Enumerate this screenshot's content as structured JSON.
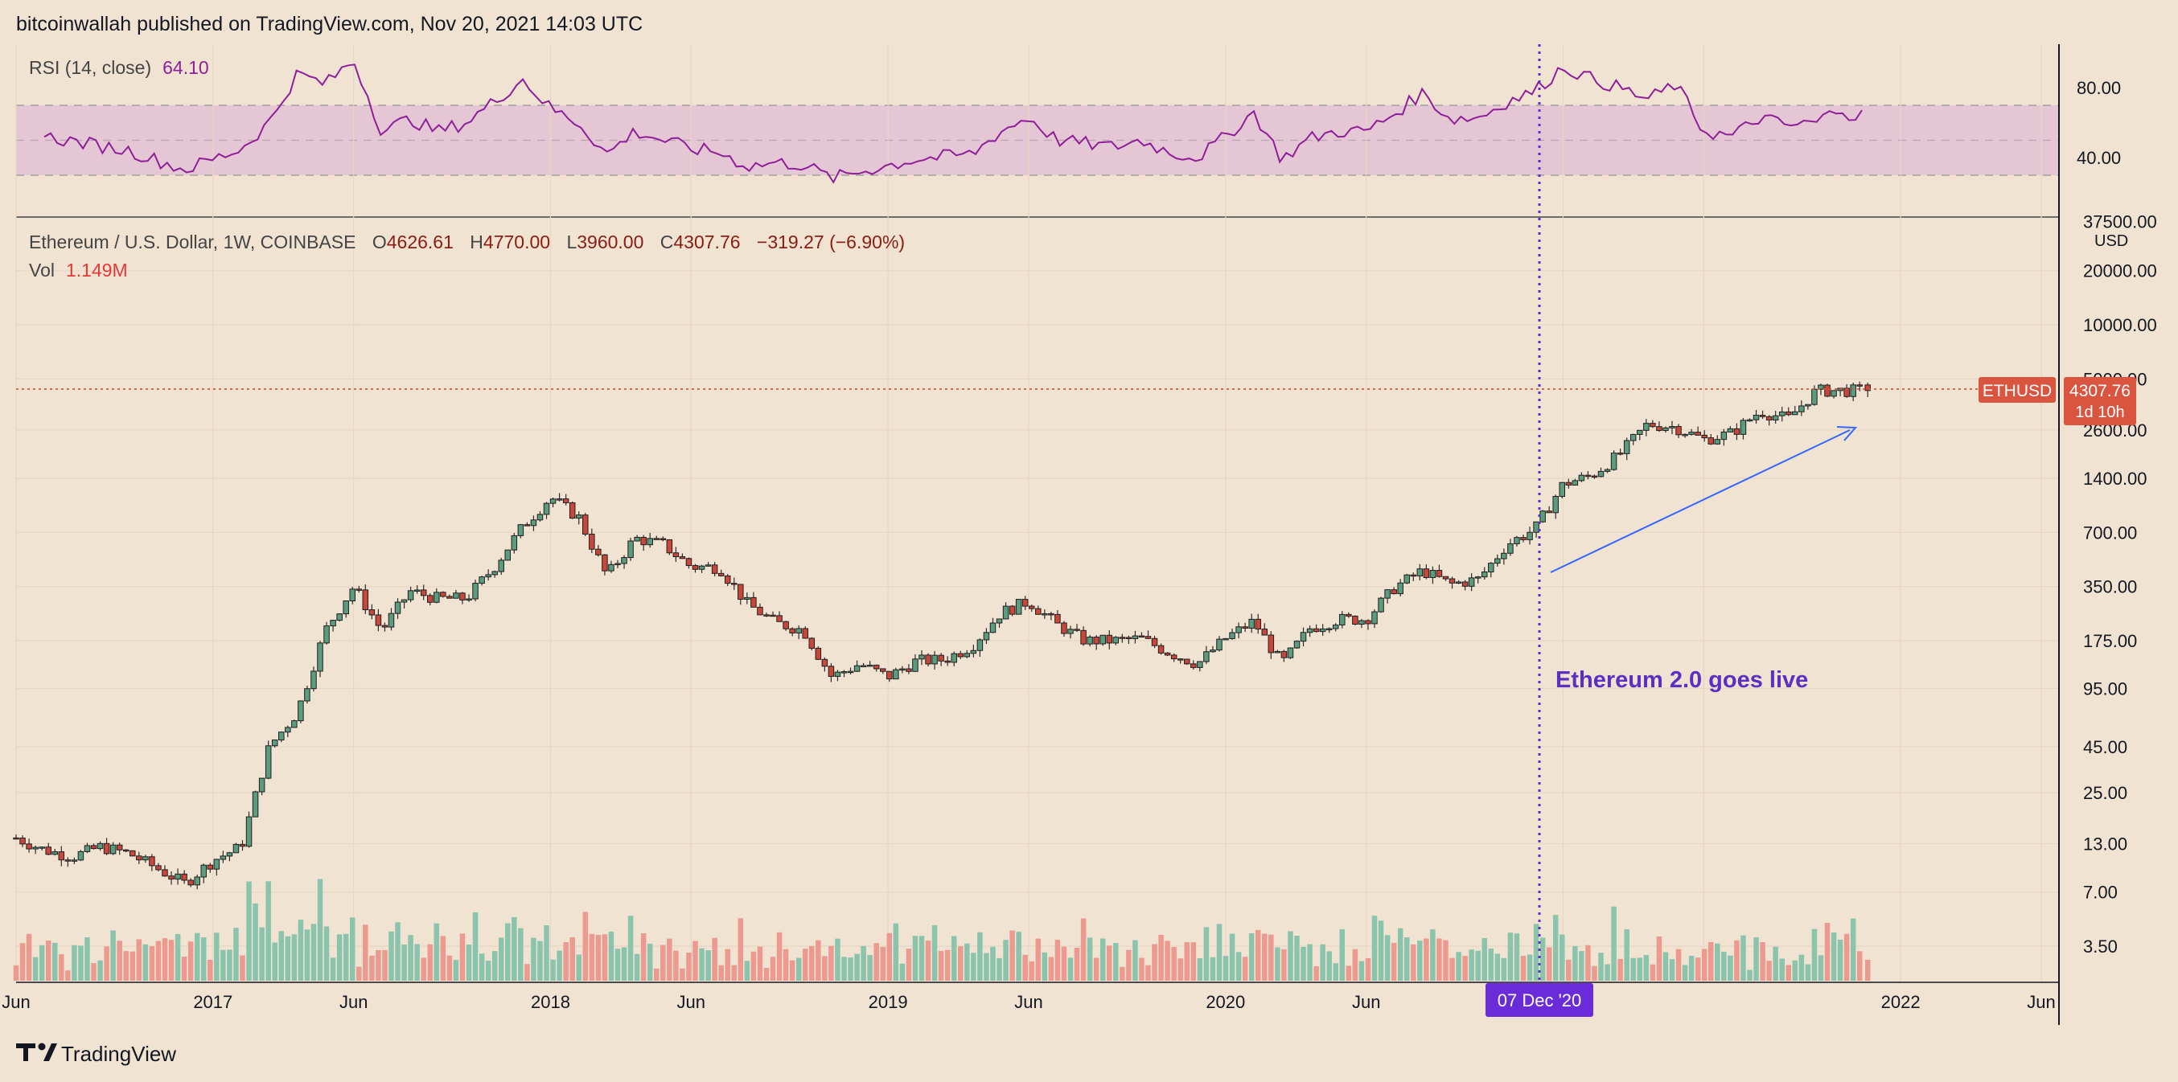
{
  "header": {
    "published_line": "bitcoinwallah published on TradingView.com, Nov 20, 2021 14:03 UTC"
  },
  "footer": {
    "brand": "TradingView"
  },
  "colors": {
    "background": "#f1e3d2",
    "up": "#5b9b7e",
    "down": "#c9473a",
    "vol_up": "#8bc4ad",
    "vol_down": "#ec9a90",
    "rsi_line": "#8e1f99",
    "rsi_band": "#e5c6d4",
    "event_line": "#5b2ec4",
    "arrow": "#3366ff",
    "price_line": "#d9553f",
    "price_tag": "#d9553f"
  },
  "rsi": {
    "legend_label": "RSI (14, close)",
    "legend_value": "64.10",
    "axis_ticks": [
      "80.00",
      "40.00"
    ]
  },
  "price_legend": {
    "symbol_line": "Ethereum / U.S. Dollar, 1W, COINBASE",
    "o_label": "O",
    "o_value": "4626.61",
    "h_label": "H",
    "h_value": "4770.00",
    "l_label": "L",
    "l_value": "3960.00",
    "c_label": "C",
    "c_value": "4307.76",
    "change": "−319.27 (−6.90%)",
    "vol_label": "Vol",
    "vol_value": "1.149M"
  },
  "price_axis": {
    "unit": "USD",
    "ticks": [
      "37500.00",
      "20000.00",
      "10000.00",
      "5000.00",
      "2600.00",
      "1400.00",
      "700.00",
      "350.00",
      "175.00",
      "95.00",
      "45.00",
      "25.00",
      "13.00",
      "7.00",
      "3.50"
    ]
  },
  "last_price": {
    "symbol": "ETHUSD",
    "price": "4307.76",
    "countdown": "1d 10h"
  },
  "time_axis": {
    "labels": [
      "Jun",
      "2017",
      "Jun",
      "2018",
      "Jun",
      "2019",
      "Jun",
      "2020",
      "Jun",
      "2022",
      "Jun"
    ],
    "crosshair_label": "07 Dec '20"
  },
  "annotation": {
    "text": "Ethereum 2.0 goes live"
  },
  "chart_data": {
    "type": "candlestick",
    "title": "Ethereum / U.S. Dollar, 1W, COINBASE",
    "scale": "logarithmic",
    "ylim": [
      3,
      40000
    ],
    "x_range": [
      "2016-06",
      "2022-06"
    ],
    "event": {
      "date": "2020-12-07",
      "label": "Ethereum 2.0 goes live"
    },
    "last": {
      "open": 4626.61,
      "high": 4770.0,
      "low": 3960.0,
      "close": 4307.76,
      "change": -319.27,
      "change_pct": -6.9,
      "volume": "1.149M"
    },
    "price_path": [
      {
        "t": "2016-06",
        "close": 14
      },
      {
        "t": "2016-07",
        "close": 12
      },
      {
        "t": "2016-08",
        "close": 11
      },
      {
        "t": "2016-09",
        "close": 12.5
      },
      {
        "t": "2016-10",
        "close": 11.5
      },
      {
        "t": "2016-11",
        "close": 9.5
      },
      {
        "t": "2016-12",
        "close": 7.8
      },
      {
        "t": "2017-01",
        "close": 10.5
      },
      {
        "t": "2017-02",
        "close": 12.5
      },
      {
        "t": "2017-03",
        "close": 45
      },
      {
        "t": "2017-04",
        "close": 70
      },
      {
        "t": "2017-05",
        "close": 200
      },
      {
        "t": "2017-06",
        "close": 350
      },
      {
        "t": "2017-07",
        "close": 200
      },
      {
        "t": "2017-08",
        "close": 330
      },
      {
        "t": "2017-09",
        "close": 300
      },
      {
        "t": "2017-10",
        "close": 300
      },
      {
        "t": "2017-11",
        "close": 450
      },
      {
        "t": "2017-12",
        "close": 750
      },
      {
        "t": "2018-01",
        "close": 1100
      },
      {
        "t": "2018-02",
        "close": 850
      },
      {
        "t": "2018-03",
        "close": 400
      },
      {
        "t": "2018-04",
        "close": 650
      },
      {
        "t": "2018-05",
        "close": 600
      },
      {
        "t": "2018-06",
        "close": 450
      },
      {
        "t": "2018-07",
        "close": 450
      },
      {
        "t": "2018-08",
        "close": 280
      },
      {
        "t": "2018-09",
        "close": 220
      },
      {
        "t": "2018-10",
        "close": 200
      },
      {
        "t": "2018-11",
        "close": 110
      },
      {
        "t": "2018-12",
        "close": 130
      },
      {
        "t": "2019-01",
        "close": 110
      },
      {
        "t": "2019-02",
        "close": 135
      },
      {
        "t": "2019-03",
        "close": 137
      },
      {
        "t": "2019-04",
        "close": 165
      },
      {
        "t": "2019-05",
        "close": 250
      },
      {
        "t": "2019-06",
        "close": 290
      },
      {
        "t": "2019-07",
        "close": 215
      },
      {
        "t": "2019-08",
        "close": 175
      },
      {
        "t": "2019-09",
        "close": 175
      },
      {
        "t": "2019-10",
        "close": 180
      },
      {
        "t": "2019-11",
        "close": 150
      },
      {
        "t": "2019-12",
        "close": 130
      },
      {
        "t": "2020-01",
        "close": 180
      },
      {
        "t": "2020-02",
        "close": 225
      },
      {
        "t": "2020-03",
        "close": 130
      },
      {
        "t": "2020-04",
        "close": 205
      },
      {
        "t": "2020-05",
        "close": 230
      },
      {
        "t": "2020-06",
        "close": 230
      },
      {
        "t": "2020-07",
        "close": 345
      },
      {
        "t": "2020-08",
        "close": 430
      },
      {
        "t": "2020-09",
        "close": 360
      },
      {
        "t": "2020-10",
        "close": 385
      },
      {
        "t": "2020-11",
        "close": 600
      },
      {
        "t": "2020-12",
        "close": 730
      },
      {
        "t": "2021-01",
        "close": 1300
      },
      {
        "t": "2021-02",
        "close": 1450
      },
      {
        "t": "2021-03",
        "close": 1900
      },
      {
        "t": "2021-04",
        "close": 2800
      },
      {
        "t": "2021-05",
        "close": 2700
      },
      {
        "t": "2021-06",
        "close": 2300
      },
      {
        "t": "2021-07",
        "close": 2500
      },
      {
        "t": "2021-08",
        "close": 3300
      },
      {
        "t": "2021-09",
        "close": 3000
      },
      {
        "t": "2021-10",
        "close": 4300
      },
      {
        "t": "2021-11",
        "close": 4300
      }
    ],
    "rsi": [
      {
        "t": "2016-07",
        "v": 52
      },
      {
        "t": "2016-10",
        "v": 44
      },
      {
        "t": "2016-12",
        "v": 33
      },
      {
        "t": "2017-02",
        "v": 45
      },
      {
        "t": "2017-03",
        "v": 60
      },
      {
        "t": "2017-04",
        "v": 88
      },
      {
        "t": "2017-05",
        "v": 82
      },
      {
        "t": "2017-06",
        "v": 96
      },
      {
        "t": "2017-07",
        "v": 55
      },
      {
        "t": "2017-08",
        "v": 62
      },
      {
        "t": "2017-09",
        "v": 55
      },
      {
        "t": "2017-10",
        "v": 60
      },
      {
        "t": "2017-11",
        "v": 72
      },
      {
        "t": "2017-12",
        "v": 85
      },
      {
        "t": "2018-01",
        "v": 68
      },
      {
        "t": "2018-02",
        "v": 60
      },
      {
        "t": "2018-03",
        "v": 42
      },
      {
        "t": "2018-04",
        "v": 55
      },
      {
        "t": "2018-05",
        "v": 50
      },
      {
        "t": "2018-06",
        "v": 45
      },
      {
        "t": "2018-07",
        "v": 43
      },
      {
        "t": "2018-08",
        "v": 35
      },
      {
        "t": "2018-09",
        "v": 37
      },
      {
        "t": "2018-10",
        "v": 36
      },
      {
        "t": "2018-11",
        "v": 28
      },
      {
        "t": "2018-12",
        "v": 32
      },
      {
        "t": "2019-02",
        "v": 39
      },
      {
        "t": "2019-04",
        "v": 42
      },
      {
        "t": "2019-05",
        "v": 55
      },
      {
        "t": "2019-06",
        "v": 63
      },
      {
        "t": "2019-07",
        "v": 50
      },
      {
        "t": "2019-08",
        "v": 48
      },
      {
        "t": "2019-09",
        "v": 46
      },
      {
        "t": "2019-10",
        "v": 50
      },
      {
        "t": "2019-11",
        "v": 43
      },
      {
        "t": "2019-12",
        "v": 40
      },
      {
        "t": "2020-01",
        "v": 52
      },
      {
        "t": "2020-02",
        "v": 66
      },
      {
        "t": "2020-03",
        "v": 39
      },
      {
        "t": "2020-04",
        "v": 51
      },
      {
        "t": "2020-05",
        "v": 55
      },
      {
        "t": "2020-06",
        "v": 55
      },
      {
        "t": "2020-07",
        "v": 65
      },
      {
        "t": "2020-08",
        "v": 77
      },
      {
        "t": "2020-09",
        "v": 62
      },
      {
        "t": "2020-10",
        "v": 63
      },
      {
        "t": "2020-11",
        "v": 72
      },
      {
        "t": "2020-12",
        "v": 78
      },
      {
        "t": "2021-01",
        "v": 92
      },
      {
        "t": "2021-02",
        "v": 85
      },
      {
        "t": "2021-03",
        "v": 80
      },
      {
        "t": "2021-04",
        "v": 73
      },
      {
        "t": "2021-05",
        "v": 82
      },
      {
        "t": "2021-06",
        "v": 55
      },
      {
        "t": "2021-07",
        "v": 52
      },
      {
        "t": "2021-08",
        "v": 63
      },
      {
        "t": "2021-09",
        "v": 58
      },
      {
        "t": "2021-10",
        "v": 60
      },
      {
        "t": "2021-11",
        "v": 70
      },
      {
        "t": "2021-11",
        "v": 64.1
      }
    ],
    "volume_notes": "Volume bars colored by candle direction; spikes near Mar 2020 and May 2021"
  }
}
